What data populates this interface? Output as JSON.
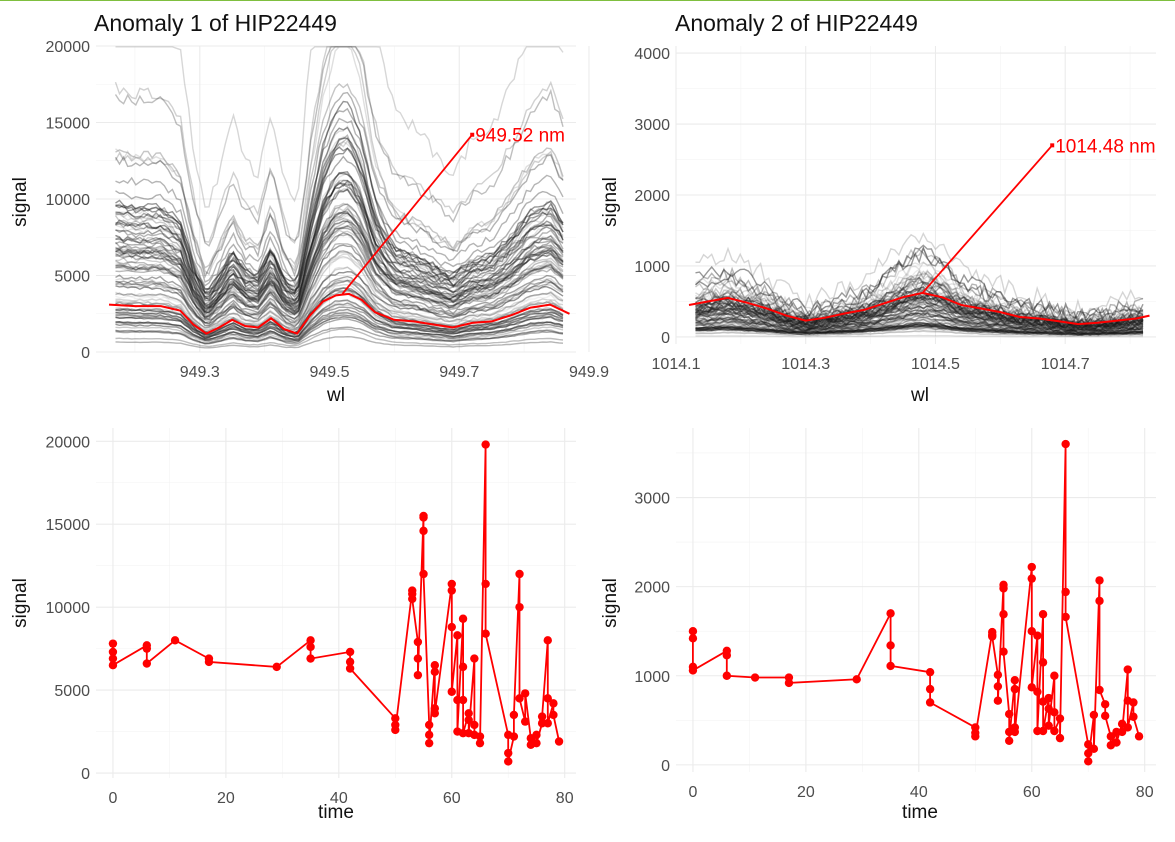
{
  "chart_data": [
    {
      "type": "line",
      "title": "Anomaly 1 of HIP22449",
      "xlabel": "wl",
      "ylabel": "signal",
      "xlim": [
        949.14,
        949.88
      ],
      "ylim": [
        0,
        20000
      ],
      "x_ticks": [
        "949.3",
        "949.5",
        "949.7",
        "949.9"
      ],
      "y_ticks": [
        "0",
        "5000",
        "10000",
        "15000",
        "20000"
      ],
      "grid": true,
      "annotation": {
        "text": "949.52 nm",
        "x": 949.52,
        "y": 3800,
        "label_x": 949.72,
        "label_y": 14200
      },
      "background_series": "many grey/black spectra (one per time)",
      "highlight_series": {
        "name": "",
        "color": "#ff0000",
        "x": [
          949.16,
          949.2,
          949.24,
          949.27,
          949.29,
          949.31,
          949.33,
          949.35,
          949.37,
          949.39,
          949.41,
          949.43,
          949.45,
          949.47,
          949.49,
          949.51,
          949.53,
          949.55,
          949.57,
          949.6,
          949.63,
          949.66,
          949.69,
          949.72,
          949.75,
          949.78,
          949.81,
          949.84,
          949.87
        ],
        "y": [
          3100,
          3000,
          3000,
          2700,
          1800,
          1200,
          1600,
          2100,
          1700,
          1600,
          2200,
          1500,
          1200,
          2400,
          3300,
          3700,
          3800,
          3400,
          2600,
          2100,
          2000,
          1800,
          1600,
          1900,
          2000,
          2400,
          2900,
          3100,
          2500
        ]
      }
    },
    {
      "type": "line",
      "title": "Anomaly 2 of HIP22449",
      "xlabel": "wl",
      "ylabel": "signal",
      "xlim": [
        1014.1,
        1014.84
      ],
      "ylim": [
        -100,
        4100
      ],
      "x_ticks": [
        "1014.1",
        "1014.3",
        "1014.5",
        "1014.7"
      ],
      "y_ticks": [
        "0",
        "1000",
        "2000",
        "3000",
        "4000"
      ],
      "grid": true,
      "annotation": {
        "text": "1014.48 nm",
        "x": 1014.48,
        "y": 620,
        "label_x": 1014.68,
        "label_y": 2700
      },
      "background_series": "many grey/black spectra (one per time)",
      "highlight_series": {
        "name": "",
        "color": "#ff0000",
        "x": [
          1014.12,
          1014.15,
          1014.18,
          1014.21,
          1014.24,
          1014.27,
          1014.3,
          1014.33,
          1014.36,
          1014.39,
          1014.42,
          1014.45,
          1014.48,
          1014.51,
          1014.54,
          1014.57,
          1014.6,
          1014.63,
          1014.66,
          1014.69,
          1014.72,
          1014.75,
          1014.78,
          1014.81,
          1014.83
        ],
        "y": [
          450,
          500,
          550,
          480,
          400,
          300,
          230,
          270,
          330,
          380,
          470,
          560,
          620,
          560,
          450,
          400,
          350,
          280,
          260,
          220,
          180,
          200,
          230,
          260,
          300
        ]
      }
    },
    {
      "type": "line",
      "title": "",
      "xlabel": "time",
      "ylabel": "signal",
      "xlim": [
        -3,
        82
      ],
      "ylim": [
        -300,
        20800
      ],
      "x_ticks": [
        "0",
        "20",
        "40",
        "60",
        "80"
      ],
      "y_ticks": [
        "0",
        "5000",
        "10000",
        "15000",
        "20000"
      ],
      "grid": true,
      "series": [
        {
          "name": "",
          "color": "#ff0000",
          "x": [
            0,
            0,
            0,
            0,
            6,
            6,
            6,
            11,
            17,
            17,
            29,
            35,
            35,
            35,
            42,
            42,
            42,
            50,
            50,
            50,
            53,
            53,
            53,
            54,
            54,
            54,
            55,
            55,
            55,
            55,
            56,
            56,
            56,
            57,
            57,
            57,
            57,
            60,
            60,
            60,
            60,
            61,
            61,
            61,
            62,
            62,
            62,
            62,
            63,
            63,
            63,
            64,
            64,
            64,
            65,
            65,
            66,
            66,
            66,
            70,
            70,
            70,
            71,
            71,
            72,
            72,
            72,
            73,
            73,
            74,
            74,
            75,
            75,
            76,
            76,
            77,
            77,
            77,
            78,
            78,
            79
          ],
          "y": [
            7800,
            7300,
            6900,
            6500,
            7700,
            7500,
            6600,
            8000,
            6900,
            6700,
            6400,
            8000,
            7600,
            6900,
            7300,
            6700,
            6300,
            3300,
            2900,
            2600,
            11000,
            10800,
            10500,
            7900,
            6900,
            5900,
            15500,
            15400,
            14600,
            12000,
            2900,
            2300,
            1800,
            6500,
            6100,
            3900,
            3600,
            11400,
            11000,
            8800,
            4900,
            8300,
            4400,
            2500,
            9300,
            6400,
            4400,
            2400,
            3600,
            3200,
            2400,
            6900,
            2900,
            2300,
            2200,
            1800,
            19800,
            11400,
            8400,
            2300,
            1200,
            700,
            2200,
            3500,
            12000,
            10000,
            4500,
            3100,
            4800,
            2100,
            1700,
            2300,
            1800,
            3000,
            3400,
            8000,
            4500,
            3000,
            4200,
            3500,
            1900
          ]
        }
      ]
    },
    {
      "type": "line",
      "title": "",
      "xlabel": "time",
      "ylabel": "signal",
      "xlim": [
        -3,
        82
      ],
      "ylim": [
        -80,
        3780
      ],
      "x_ticks": [
        "0",
        "20",
        "40",
        "60",
        "80"
      ],
      "y_ticks": [
        "0",
        "1000",
        "2000",
        "3000"
      ],
      "grid": true,
      "series": [
        {
          "name": "",
          "color": "#ff0000",
          "x": [
            0,
            0,
            0,
            0,
            6,
            6,
            6,
            11,
            17,
            17,
            29,
            35,
            35,
            35,
            42,
            42,
            42,
            50,
            50,
            50,
            53,
            53,
            53,
            54,
            54,
            54,
            55,
            55,
            55,
            55,
            56,
            56,
            56,
            57,
            57,
            57,
            57,
            60,
            60,
            60,
            60,
            61,
            61,
            61,
            62,
            62,
            62,
            62,
            63,
            63,
            63,
            64,
            64,
            64,
            65,
            65,
            66,
            66,
            66,
            70,
            70,
            70,
            71,
            71,
            72,
            72,
            72,
            73,
            73,
            74,
            74,
            75,
            75,
            76,
            76,
            77,
            77,
            77,
            78,
            78,
            79
          ],
          "y": [
            1500,
            1420,
            1100,
            1060,
            1280,
            1230,
            1000,
            980,
            980,
            920,
            960,
            1700,
            1340,
            1110,
            1040,
            850,
            700,
            420,
            360,
            320,
            1490,
            1460,
            1440,
            1010,
            880,
            720,
            2020,
            1980,
            1690,
            1270,
            570,
            370,
            270,
            950,
            850,
            420,
            370,
            2220,
            2090,
            1500,
            870,
            1450,
            820,
            380,
            1690,
            1150,
            710,
            380,
            750,
            630,
            440,
            1000,
            590,
            380,
            520,
            300,
            3600,
            1940,
            1660,
            230,
            130,
            40,
            560,
            180,
            2070,
            1840,
            840,
            680,
            550,
            320,
            220,
            370,
            250,
            460,
            370,
            1070,
            720,
            420,
            700,
            540,
            320
          ]
        }
      ]
    }
  ]
}
